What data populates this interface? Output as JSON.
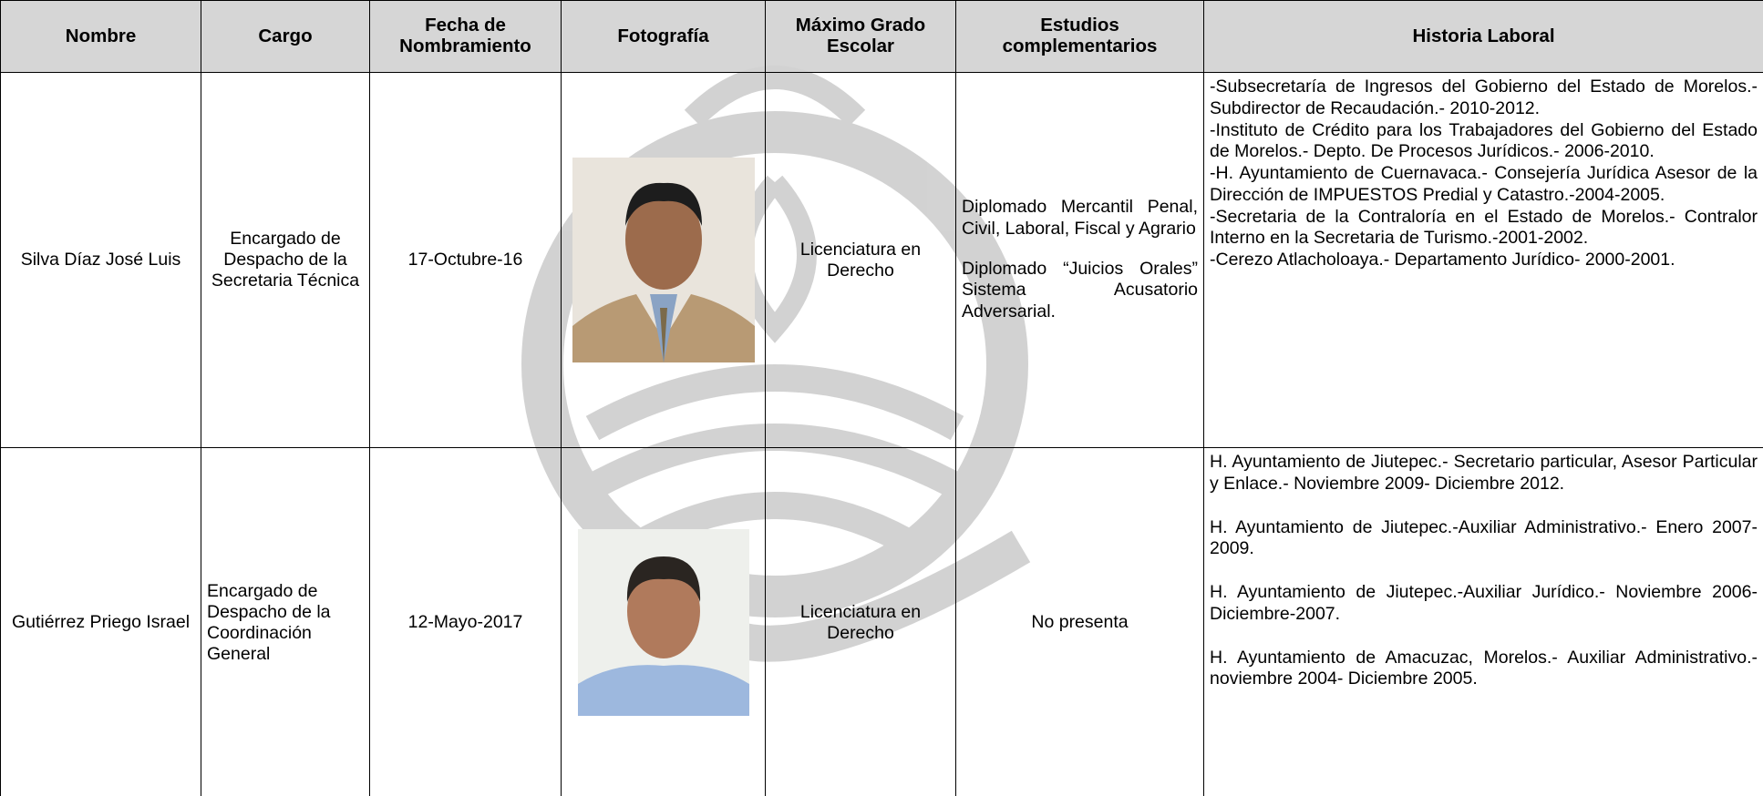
{
  "table": {
    "headers": [
      "Nombre",
      "Cargo",
      "Fecha de Nombramiento",
      "Fotografía",
      "Máximo Grado Escolar",
      "Estudios complementarios",
      "Historia Laboral"
    ],
    "rows": [
      {
        "nombre": "Silva Díaz José Luis",
        "cargo": "Encargado de Despacho de la Secretaria Técnica",
        "fecha": "17-Octubre-16",
        "grado": "Licenciatura en Derecho",
        "estudios": [
          "Diplomado Mercantil Penal, Civil, Laboral, Fiscal y Agrario",
          "Diplomado “Juicios Orales” Sistema Acusatorio Adversarial."
        ],
        "historia": [
          "-Subsecretaría de Ingresos del Gobierno del Estado de Morelos.- Subdirector de Recaudación.- 2010-2012.",
          "-Instituto de Crédito para los Trabajadores del Gobierno del Estado de Morelos.- Depto. De Procesos Jurídicos.- 2006-2010.",
          "-H. Ayuntamiento de Cuernavaca.- Consejería Jurídica Asesor de la Dirección de IMPUESTOS Predial y Catastro.-2004-2005.",
          "-Secretaria de la Contraloría en el Estado de Morelos.- Contralor Interno en la Secretaria de Turismo.-2001-2002.",
          "-Cerezo Atlacholoaya.- Departamento Jurídico- 2000-2001."
        ]
      },
      {
        "nombre": "Gutiérrez Priego Israel",
        "cargo": "Encargado de Despacho de la Coordinación General",
        "fecha": "12-Mayo-2017",
        "grado": "Licenciatura en Derecho",
        "estudios": [
          "No presenta"
        ],
        "historia": [
          "H. Ayuntamiento de Jiutepec.- Secretario particular, Asesor Particular y Enlace.- Noviembre 2009- Diciembre 2012.",
          "H. Ayuntamiento de Jiutepec.-Auxiliar Administrativo.- Enero 2007-2009.",
          "H. Ayuntamiento de Jiutepec.-Auxiliar Jurídico.- Noviembre 2006- Diciembre-2007.",
          "H. Ayuntamiento de Amacuzac, Morelos.- Auxiliar Administrativo.- noviembre 2004- Diciembre 2005."
        ]
      }
    ]
  }
}
